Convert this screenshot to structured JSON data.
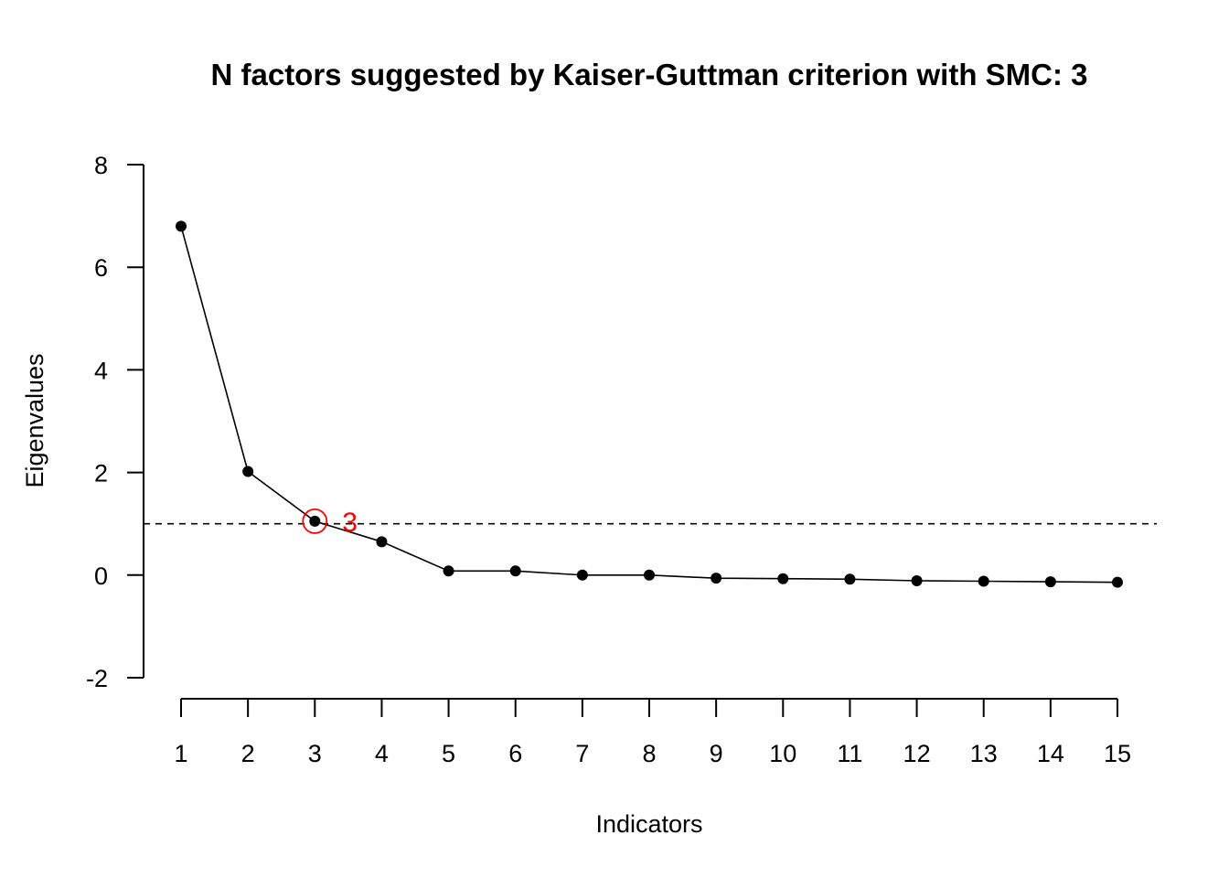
{
  "chart_data": {
    "type": "line",
    "title": "N factors suggested by Kaiser-Guttman criterion with SMC: 3",
    "xlabel": "Indicators",
    "ylabel": "Eigenvalues",
    "x": [
      1,
      2,
      3,
      4,
      5,
      6,
      7,
      8,
      9,
      10,
      11,
      12,
      13,
      14,
      15
    ],
    "x_tick_labels": [
      "1",
      "2",
      "3",
      "4",
      "5",
      "6",
      "7",
      "8",
      "9",
      "10",
      "11",
      "12",
      "13",
      "14",
      "15"
    ],
    "y_tick_labels": [
      "-2",
      "0",
      "2",
      "4",
      "6",
      "8"
    ],
    "y_ticks": [
      -2,
      0,
      2,
      4,
      6,
      8
    ],
    "series": [
      {
        "values": [
          6.8,
          2.02,
          1.05,
          0.65,
          0.08,
          0.08,
          0.0,
          0.0,
          -0.06,
          -0.07,
          -0.08,
          -0.11,
          -0.12,
          -0.13,
          -0.14
        ]
      }
    ],
    "ylim": [
      -2,
      8
    ],
    "xlim": [
      1,
      15
    ],
    "reference_line": {
      "y": 1,
      "style": "dashed"
    },
    "highlight": {
      "x": 3,
      "y": 1.05,
      "label": "3",
      "color": "#ff0000"
    },
    "colors": {
      "series": "#000000",
      "highlight": "#ff0000"
    },
    "grid": false,
    "legend": "none"
  }
}
